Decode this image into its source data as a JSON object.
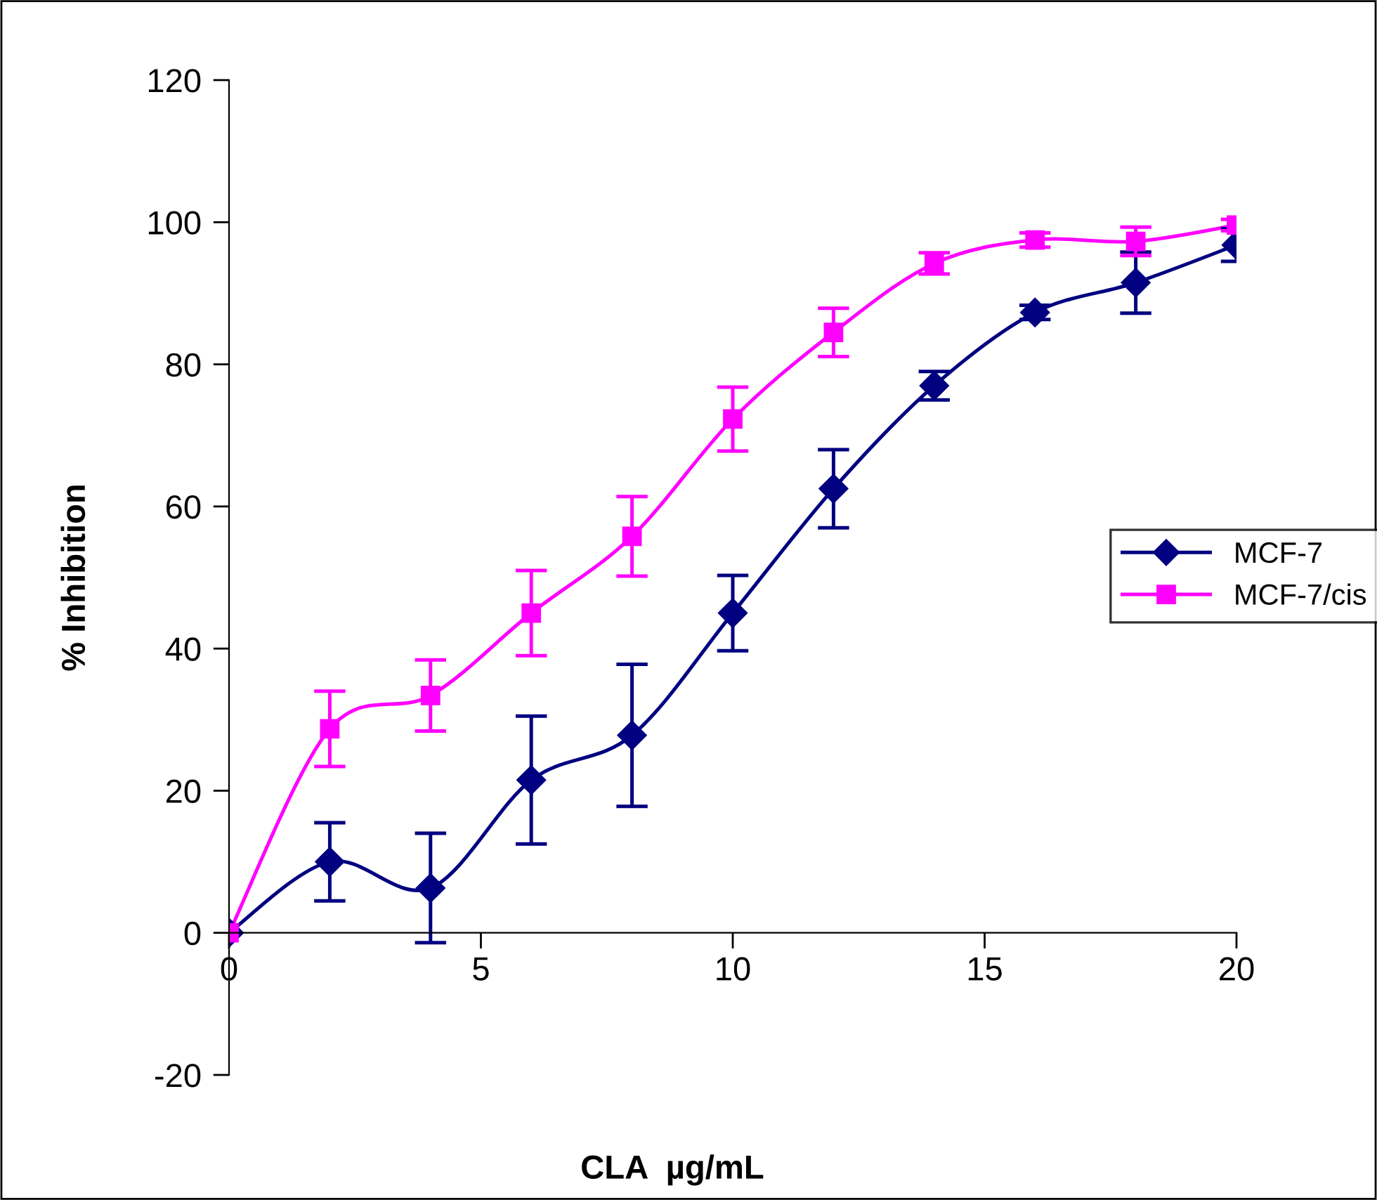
{
  "chart_data": {
    "type": "line",
    "xlabel": "CLA  µg/mL",
    "ylabel": "% Inhibition",
    "x": [
      0,
      2,
      4,
      6,
      8,
      10,
      12,
      14,
      16,
      18,
      20
    ],
    "series": [
      {
        "name": "MCF-7",
        "color": "#000080",
        "marker": "diamond",
        "values": [
          0,
          10,
          6.3,
          21.5,
          27.8,
          45,
          62.5,
          77,
          87.3,
          91.5,
          96.8
        ],
        "errors": [
          null,
          5.5,
          7.7,
          9,
          10,
          5.3,
          5.5,
          2,
          1,
          4.3,
          2.3
        ]
      },
      {
        "name": "MCF-7/cis",
        "color": "#ff00ff",
        "marker": "square",
        "values": [
          0,
          28.7,
          33.4,
          45,
          55.8,
          72.3,
          84.5,
          94.2,
          97.5,
          97.3,
          99.6
        ],
        "errors": [
          null,
          5.3,
          5,
          6,
          5.6,
          4.5,
          3.4,
          1.5,
          1,
          2,
          0.8
        ]
      }
    ],
    "xlim": [
      0,
      20
    ],
    "xticks": [
      0,
      5,
      10,
      15,
      20
    ],
    "ylim": [
      -20,
      120
    ],
    "yticks": [
      -20,
      0,
      20,
      40,
      60,
      80,
      100,
      120
    ],
    "grid": false,
    "legend": "right",
    "line_style": "solid"
  }
}
